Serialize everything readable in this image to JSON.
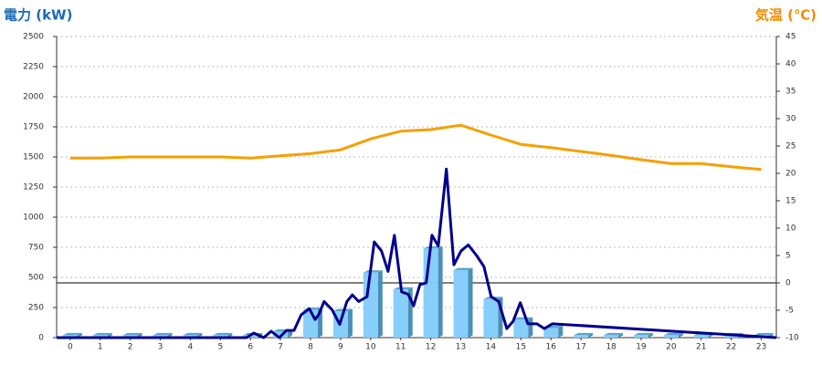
{
  "chart_data": {
    "type": "bar_line",
    "title": "電力 (kW)",
    "y2_title": "気温 (℃)",
    "xlim": [
      -0.45,
      23.5
    ],
    "xticks": [
      0,
      1,
      2,
      3,
      4,
      5,
      6,
      7,
      8,
      9,
      10,
      11,
      12,
      13,
      14,
      15,
      16,
      17,
      18,
      19,
      20,
      21,
      22,
      23
    ],
    "ylim": [
      0,
      2500
    ],
    "yticks": [
      0,
      250,
      500,
      750,
      1000,
      1250,
      1500,
      1750,
      2000,
      2250,
      2500
    ],
    "y2lim": [
      -10,
      45
    ],
    "y2ticks": [
      -10,
      -5,
      0,
      5,
      10,
      15,
      20,
      25,
      30,
      35,
      40,
      45
    ],
    "grid": true,
    "series": [
      {
        "type": "bar",
        "color": "#87cefa",
        "x": [
          0,
          1,
          2,
          3,
          4,
          5,
          6,
          7,
          8,
          9,
          10,
          11,
          12,
          13,
          14,
          15,
          16,
          17,
          18,
          19,
          20,
          21,
          22,
          23
        ],
        "values": [
          20,
          20,
          20,
          20,
          20,
          20,
          20,
          50,
          230,
          220,
          540,
          400,
          740,
          560,
          320,
          150,
          80,
          20,
          20,
          20,
          20,
          20,
          20,
          20
        ]
      },
      {
        "type": "line",
        "color": "#00008b",
        "x": [
          -0.45,
          5.87,
          6.11,
          6.44,
          6.69,
          6.96,
          7.2,
          7.45,
          7.69,
          7.96,
          8.15,
          8.27,
          8.45,
          8.72,
          8.97,
          9.21,
          9.39,
          9.6,
          9.88,
          10.12,
          10.36,
          10.58,
          10.79,
          11.03,
          11.25,
          11.43,
          11.64,
          11.85,
          12.04,
          12.25,
          12.52,
          12.77,
          13.01,
          13.25,
          13.53,
          13.77,
          14.01,
          14.26,
          14.53,
          14.74,
          14.98,
          15.23,
          15.53,
          15.78,
          16.05,
          23.5
        ],
        "values": [
          0,
          0,
          38,
          0,
          53,
          0,
          60,
          60,
          190,
          240,
          150,
          190,
          300,
          230,
          110,
          300,
          355,
          300,
          340,
          795,
          720,
          550,
          850,
          380,
          360,
          265,
          440,
          455,
          850,
          760,
          1400,
          605,
          720,
          770,
          680,
          590,
          340,
          300,
          75,
          135,
          290,
          115,
          115,
          75,
          115,
          0
        ]
      },
      {
        "type": "line",
        "axis": "y2",
        "color": "#f5a000",
        "x": [
          0,
          1,
          2,
          3,
          4,
          5,
          6,
          7,
          8,
          9,
          10,
          11,
          12,
          13,
          14,
          15,
          16,
          17,
          18,
          19,
          20,
          21,
          22,
          23
        ],
        "values": [
          22.8,
          22.8,
          23,
          23,
          23,
          23,
          22.8,
          23.2,
          23.6,
          24.3,
          26.3,
          27.7,
          28,
          28.8,
          27,
          25.3,
          24.7,
          24,
          23.3,
          22.5,
          21.8,
          21.8,
          21.2,
          20.7
        ]
      }
    ]
  }
}
